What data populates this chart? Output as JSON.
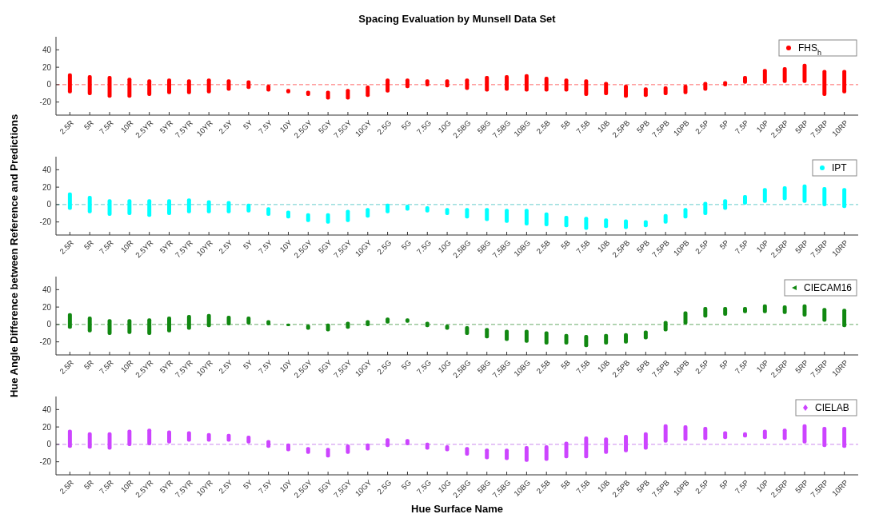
{
  "chart_data": [
    {
      "type": "bar",
      "title": "Spacing Evaluation by Munsell Data Set",
      "ylabel": "Hue Angle Difference between Reference and Predictions",
      "categories": [
        "2.5R",
        "5R",
        "7.5R",
        "10R",
        "2.5YR",
        "5YR",
        "7.5YR",
        "10YR",
        "2.5Y",
        "5Y",
        "7.5Y",
        "10Y",
        "2.5GY",
        "5GY",
        "7.5GY",
        "10GY",
        "2.5G",
        "5G",
        "7.5G",
        "10G",
        "2.5BG",
        "5BG",
        "7.5BG",
        "10BG",
        "2.5B",
        "5B",
        "7.5B",
        "10B",
        "2.5PB",
        "5PB",
        "7.5PB",
        "10PB",
        "2.5P",
        "5P",
        "7.5P",
        "10P",
        "2.5RP",
        "5RP",
        "7.5RP",
        "10RP"
      ],
      "series": [
        {
          "name": "FHS$_{h}$",
          "color": "#ff0000",
          "base": [
            -10,
            -12,
            -15,
            -15,
            -13,
            -11,
            -11,
            -10,
            -7,
            -5,
            -8,
            -10,
            -13,
            -17,
            -17,
            -14,
            -9,
            -4,
            -2,
            -3,
            -6,
            -8,
            -7,
            -8,
            -8,
            -8,
            -13,
            -12,
            -15,
            -14,
            -12,
            -11,
            -7,
            -2,
            1,
            1,
            2,
            2,
            -13,
            -10
          ],
          "values": [
            23,
            23,
            25,
            23,
            19,
            18,
            17,
            17,
            13,
            10,
            8,
            5,
            6,
            10,
            12,
            13,
            16,
            11,
            8,
            9,
            13,
            18,
            18,
            20,
            17,
            15,
            19,
            15,
            15,
            11,
            10,
            11,
            10,
            6,
            9,
            17,
            18,
            22,
            30,
            27
          ]
        }
      ],
      "ylim": [
        -35,
        55
      ],
      "yticks": [
        -20,
        0,
        20,
        40
      ],
      "ref_lines": [
        {
          "axis": "y",
          "value": 0,
          "color": "#ff6666",
          "line_style": "dashed"
        }
      ],
      "legend": "top right",
      "marker": "circle"
    },
    {
      "type": "bar",
      "categories": [
        "2.5R",
        "5R",
        "7.5R",
        "10R",
        "2.5YR",
        "5YR",
        "7.5YR",
        "10YR",
        "2.5Y",
        "5Y",
        "7.5Y",
        "10Y",
        "2.5GY",
        "5GY",
        "7.5GY",
        "10GY",
        "2.5G",
        "5G",
        "7.5G",
        "10G",
        "2.5BG",
        "5BG",
        "7.5BG",
        "10BG",
        "2.5B",
        "5B",
        "7.5B",
        "10B",
        "2.5PB",
        "5PB",
        "7.5PB",
        "10PB",
        "2.5P",
        "5P",
        "7.5P",
        "10P",
        "2.5RP",
        "5RP",
        "7.5RP",
        "10RP"
      ],
      "series": [
        {
          "name": "IPT",
          "color": "#00ffff",
          "base": [
            -6,
            -10,
            -13,
            -12,
            -14,
            -12,
            -10,
            -10,
            -10,
            -9,
            -13,
            -16,
            -20,
            -22,
            -20,
            -15,
            -10,
            -7,
            -9,
            -12,
            -16,
            -19,
            -21,
            -24,
            -25,
            -26,
            -29,
            -27,
            -28,
            -26,
            -22,
            -16,
            -12,
            -6,
            0,
            2,
            5,
            2,
            -2,
            -4
          ],
          "values": [
            20,
            20,
            19,
            18,
            20,
            18,
            17,
            15,
            14,
            10,
            10,
            9,
            10,
            12,
            14,
            11,
            11,
            7,
            7,
            8,
            12,
            15,
            16,
            19,
            16,
            13,
            15,
            11,
            11,
            8,
            11,
            12,
            15,
            12,
            11,
            17,
            16,
            21,
            22,
            23
          ]
        }
      ],
      "ylim": [
        -35,
        55
      ],
      "yticks": [
        -20,
        0,
        20,
        40
      ],
      "ref_lines": [
        {
          "axis": "y",
          "value": 0,
          "color": "#66cccc",
          "line_style": "dashed"
        }
      ],
      "legend": "top right",
      "marker": "circle"
    },
    {
      "type": "bar",
      "categories": [
        "2.5R",
        "5R",
        "7.5R",
        "10R",
        "2.5YR",
        "5YR",
        "7.5YR",
        "10YR",
        "2.5Y",
        "5Y",
        "7.5Y",
        "10Y",
        "2.5GY",
        "5GY",
        "7.5GY",
        "10GY",
        "2.5G",
        "5G",
        "7.5G",
        "10G",
        "2.5BG",
        "5BG",
        "7.5BG",
        "10BG",
        "2.5B",
        "5B",
        "7.5B",
        "10B",
        "2.5PB",
        "5PB",
        "7.5PB",
        "10PB",
        "2.5P",
        "5P",
        "7.5P",
        "10P",
        "2.5RP",
        "5RP",
        "7.5RP",
        "10RP"
      ],
      "series": [
        {
          "name": "CIECAM16",
          "color": "#118811",
          "base": [
            -5,
            -9,
            -12,
            -11,
            -12,
            -9,
            -6,
            -3,
            -1,
            0,
            -1,
            -2,
            -6,
            -8,
            -5,
            -2,
            1,
            2,
            -3,
            -6,
            -12,
            -16,
            -19,
            -21,
            -23,
            -23,
            -26,
            -23,
            -22,
            -17,
            -8,
            0,
            8,
            10,
            13,
            13,
            12,
            9,
            3,
            -3
          ],
          "values": [
            18,
            18,
            18,
            17,
            19,
            18,
            17,
            15,
            11,
            9,
            6,
            3,
            6,
            9,
            8,
            7,
            7,
            5,
            6,
            6,
            10,
            12,
            13,
            15,
            15,
            12,
            14,
            12,
            12,
            10,
            12,
            15,
            12,
            10,
            7,
            10,
            10,
            14,
            16,
            21
          ]
        }
      ],
      "ylim": [
        -35,
        55
      ],
      "yticks": [
        -20,
        0,
        20,
        40
      ],
      "ref_lines": [
        {
          "axis": "y",
          "value": 0,
          "color": "#66aa66",
          "line_style": "dashed"
        }
      ],
      "legend": "top right",
      "marker": "triangle"
    },
    {
      "type": "bar",
      "xlabel": "Hue Surface Name",
      "categories": [
        "2.5R",
        "5R",
        "7.5R",
        "10R",
        "2.5YR",
        "5YR",
        "7.5YR",
        "10YR",
        "2.5Y",
        "5Y",
        "7.5Y",
        "10Y",
        "2.5GY",
        "5GY",
        "7.5GY",
        "10GY",
        "2.5G",
        "5G",
        "7.5G",
        "10G",
        "2.5BG",
        "5BG",
        "7.5BG",
        "10BG",
        "2.5B",
        "5B",
        "7.5B",
        "10B",
        "2.5PB",
        "5PB",
        "7.5PB",
        "10PB",
        "2.5P",
        "5P",
        "7.5P",
        "10P",
        "2.5RP",
        "5RP",
        "7.5RP",
        "10RP"
      ],
      "series": [
        {
          "name": "CIELAB",
          "color": "#cc44ff",
          "base": [
            -4,
            -5,
            -6,
            -2,
            -1,
            1,
            3,
            3,
            3,
            1,
            -4,
            -8,
            -11,
            -15,
            -11,
            -7,
            -3,
            -1,
            -6,
            -8,
            -13,
            -17,
            -18,
            -20,
            -19,
            -16,
            -16,
            -11,
            -9,
            -6,
            2,
            4,
            5,
            6,
            8,
            6,
            5,
            1,
            -3,
            -4
          ],
          "values": [
            21,
            19,
            20,
            19,
            19,
            15,
            12,
            10,
            9,
            9,
            9,
            9,
            8,
            11,
            11,
            8,
            10,
            7,
            8,
            7,
            10,
            12,
            13,
            18,
            18,
            19,
            25,
            19,
            20,
            20,
            21,
            18,
            15,
            9,
            6,
            11,
            13,
            22,
            23,
            24
          ]
        }
      ],
      "ylim": [
        -35,
        55
      ],
      "yticks": [
        -20,
        0,
        20,
        40
      ],
      "ref_lines": [
        {
          "axis": "y",
          "value": 0,
          "color": "#cc88ee",
          "line_style": "dashed"
        }
      ],
      "legend": "top right",
      "marker": "diamond"
    }
  ]
}
